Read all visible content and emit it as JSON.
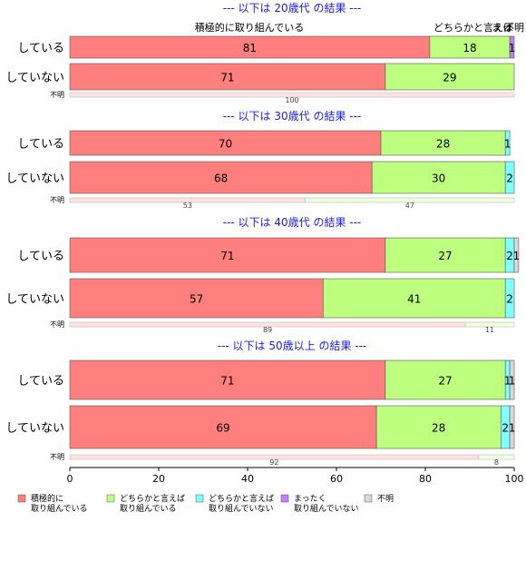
{
  "chart_data": {
    "type": "bar",
    "orientation": "horizontal",
    "stacked": true,
    "xlim": [
      0,
      100
    ],
    "x_ticks": [
      0,
      20,
      40,
      60,
      80,
      100
    ],
    "top_labels": [
      "積極的に取り組んでいる",
      "どちらかと言えば",
      "まっ",
      "不明"
    ],
    "categories_legend": [
      {
        "label": "積極的に\n取り組んでいる",
        "color": "#ff7f7f"
      },
      {
        "label": "どちらかと言えば\n取り組んでいる",
        "color": "#bfff7f"
      },
      {
        "label": "どちらかと言えば\n取り組んでいない",
        "color": "#7fffff"
      },
      {
        "label": "まったく\n取り組んでいない",
        "color": "#bf7fff"
      },
      {
        "label": "不明",
        "color": "#d9d9d9"
      }
    ],
    "panels": [
      {
        "title": "--- 以下は 20歳代 の結果 ---",
        "rows": [
          {
            "label": "している",
            "values": [
              81,
              18,
              0,
              1,
              0
            ]
          },
          {
            "label": "していない",
            "values": [
              71,
              29,
              0,
              0,
              0
            ]
          }
        ],
        "unknown": {
          "label": "不明",
          "values": [
            100
          ]
        }
      },
      {
        "title": "--- 以下は 30歳代 の結果 ---",
        "rows": [
          {
            "label": "している",
            "values": [
              70,
              28,
              1,
              0,
              0
            ]
          },
          {
            "label": "していない",
            "values": [
              68,
              30,
              2,
              0,
              0
            ]
          }
        ],
        "unknown": {
          "label": "不明",
          "values": [
            53,
            47
          ]
        }
      },
      {
        "title": "--- 以下は 40歳代 の結果 ---",
        "rows": [
          {
            "label": "している",
            "values": [
              71,
              27,
              2,
              0,
              1
            ]
          },
          {
            "label": "していない",
            "values": [
              57,
              41,
              2,
              0,
              0
            ]
          }
        ],
        "unknown": {
          "label": "不明",
          "values": [
            89,
            11
          ]
        }
      },
      {
        "title": "--- 以下は 50歳以上 の結果 ---",
        "rows": [
          {
            "label": "している",
            "values": [
              71,
              27,
              1,
              0,
              1
            ]
          },
          {
            "label": "していない",
            "values": [
              69,
              28,
              2,
              0,
              1
            ]
          }
        ],
        "unknown": {
          "label": "不明",
          "values": [
            92,
            8
          ]
        }
      }
    ]
  }
}
